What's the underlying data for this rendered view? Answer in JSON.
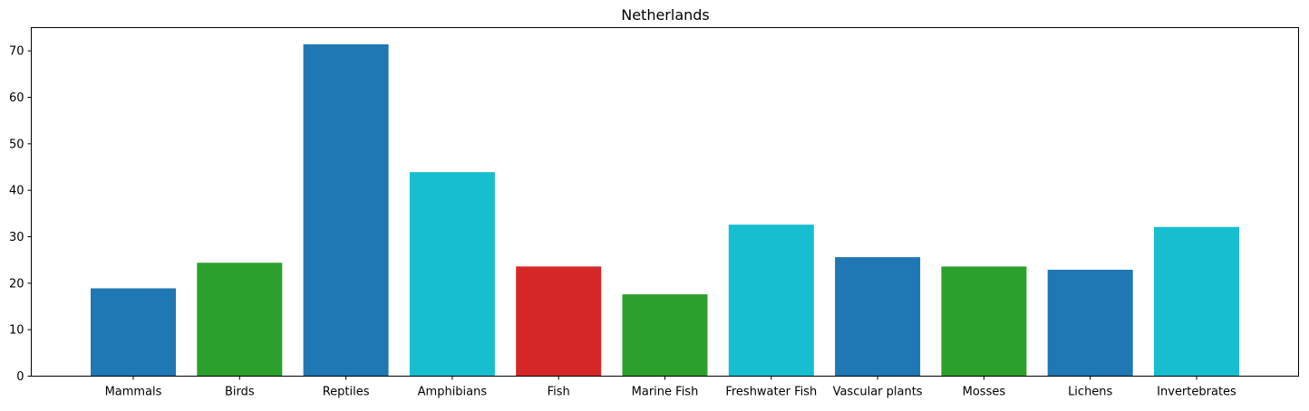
{
  "chart_data": {
    "type": "bar",
    "title": "Netherlands",
    "xlabel": "",
    "ylabel": "",
    "categories": [
      "Mammals",
      "Birds",
      "Reptiles",
      "Amphibians",
      "Fish",
      "Marine Fish",
      "Freshwater Fish",
      "Vascular plants",
      "Mosses",
      "Lichens",
      "Invertebrates"
    ],
    "values": [
      18.9,
      24.4,
      71.4,
      43.9,
      23.6,
      17.6,
      32.6,
      25.6,
      23.6,
      22.9,
      32.1
    ],
    "bar_colors": [
      "#1f77b4",
      "#2ca02c",
      "#1f77b4",
      "#17becf",
      "#d62728",
      "#2ca02c",
      "#17becf",
      "#1f77b4",
      "#2ca02c",
      "#1f77b4",
      "#17becf"
    ],
    "ylim": [
      0,
      75
    ],
    "yticks": [
      0,
      10,
      20,
      30,
      40,
      50,
      60,
      70
    ],
    "grid": false,
    "legend": "none"
  }
}
